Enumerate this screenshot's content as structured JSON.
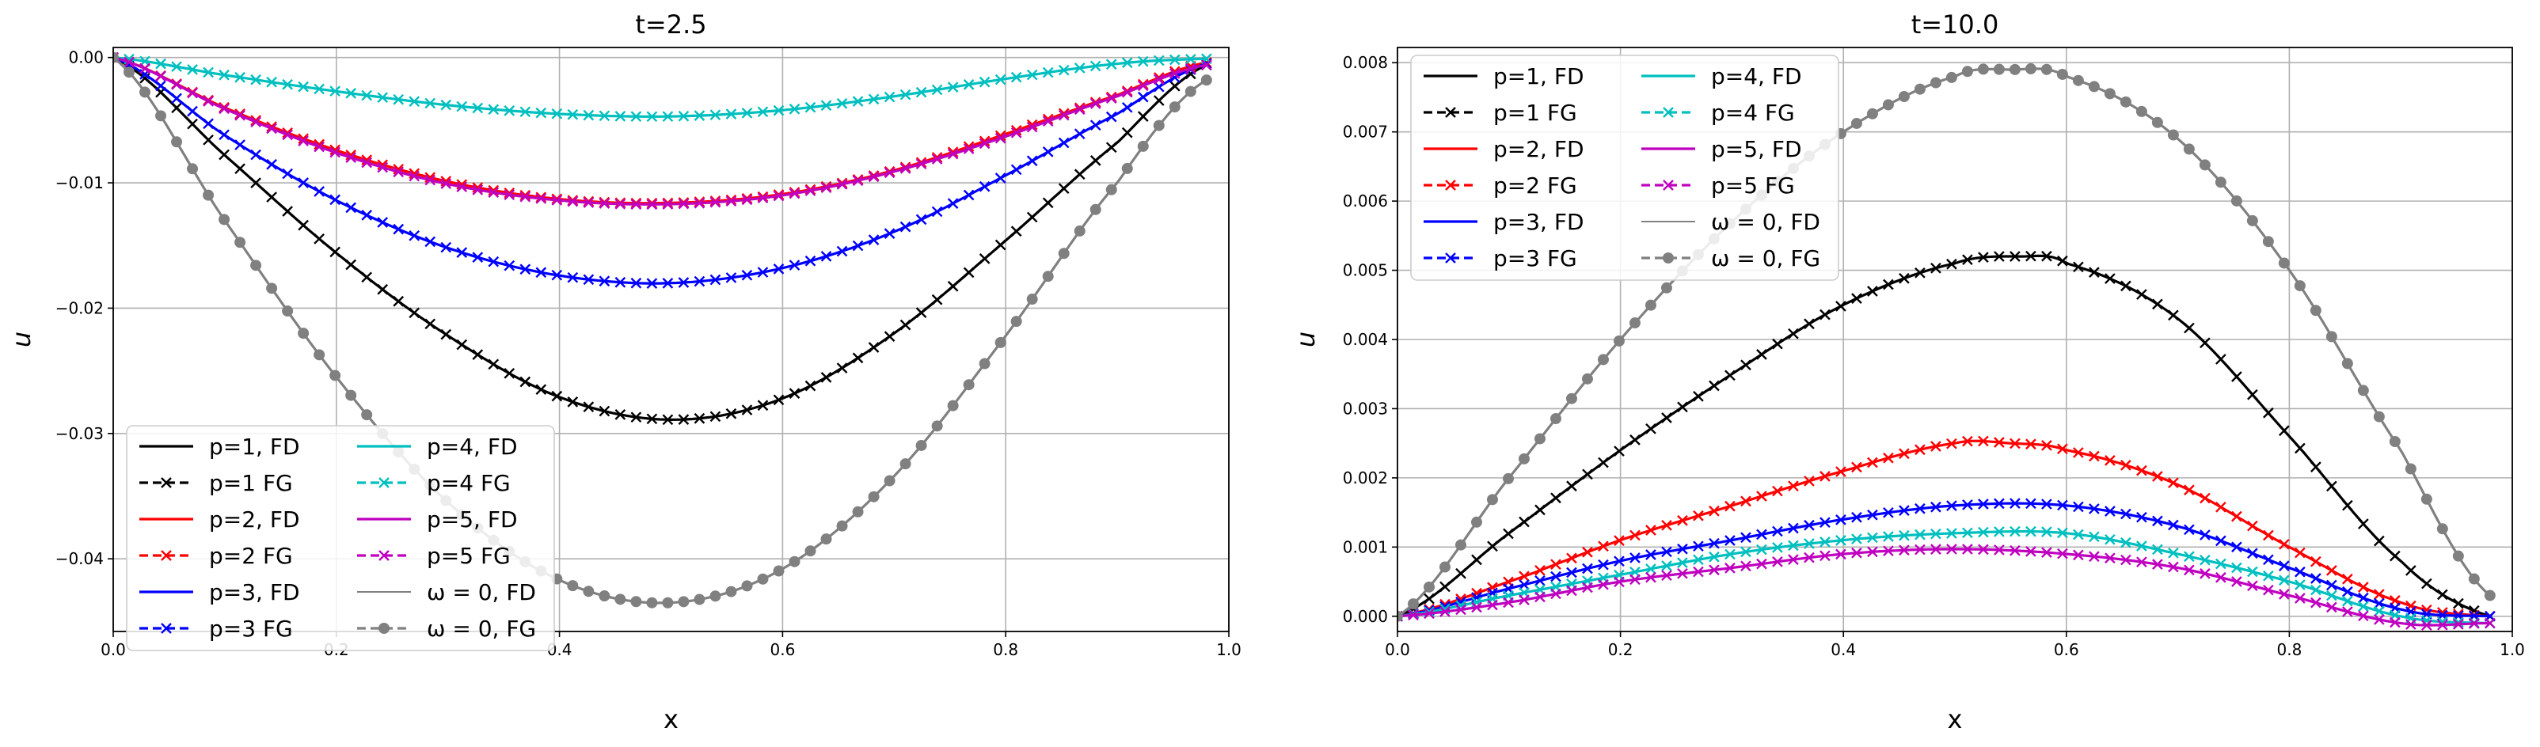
{
  "chart_data": [
    {
      "type": "line",
      "title": "t=2.5",
      "xlabel": "x",
      "ylabel": "u",
      "xlim": [
        0.0,
        1.0
      ],
      "ylim": [
        -0.0458,
        0.0008
      ],
      "xticks": [
        "0.0",
        "0.2",
        "0.4",
        "0.6",
        "0.8",
        "1.0"
      ],
      "yticks": [
        "0.00",
        "−0.01",
        "−0.02",
        "−0.03",
        "−0.04"
      ],
      "grid": true,
      "legend_position": "lower-left",
      "legend": [
        "p=1, FD",
        "p=1 FG",
        "p=2, FD",
        "p=2 FG",
        "p=3, FD",
        "p=3 FG",
        "p=4, FD",
        "p=4 FG",
        "p=5, FD",
        "p=5 FG",
        "ω = 0, FD",
        "ω = 0, FG"
      ],
      "series": [
        {
          "name": "p=1",
          "color": "#000000",
          "points": [
            [
              0,
              0
            ],
            [
              0.1,
              -0.0078
            ],
            [
              0.2,
              -0.0156
            ],
            [
              0.3,
              -0.0222
            ],
            [
              0.4,
              -0.0271
            ],
            [
              0.5,
              -0.0289
            ],
            [
              0.6,
              -0.0272
            ],
            [
              0.7,
              -0.022
            ],
            [
              0.8,
              -0.0146
            ],
            [
              0.9,
              -0.0068
            ],
            [
              0.98,
              -0.0006
            ]
          ]
        },
        {
          "name": "p=2",
          "color": "#ff0000",
          "points": [
            [
              0,
              0
            ],
            [
              0.1,
              -0.004
            ],
            [
              0.2,
              -0.0074
            ],
            [
              0.3,
              -0.0099
            ],
            [
              0.4,
              -0.0113
            ],
            [
              0.5,
              -0.0116
            ],
            [
              0.6,
              -0.0109
            ],
            [
              0.7,
              -0.009
            ],
            [
              0.8,
              -0.0061
            ],
            [
              0.9,
              -0.003
            ],
            [
              0.98,
              -0.0004
            ]
          ]
        },
        {
          "name": "p=3",
          "color": "#0000ff",
          "points": [
            [
              0,
              0
            ],
            [
              0.1,
              -0.0062
            ],
            [
              0.2,
              -0.0114
            ],
            [
              0.3,
              -0.0152
            ],
            [
              0.4,
              -0.0174
            ],
            [
              0.5,
              -0.018
            ],
            [
              0.6,
              -0.0168
            ],
            [
              0.7,
              -0.0139
            ],
            [
              0.8,
              -0.0094
            ],
            [
              0.9,
              -0.0045
            ],
            [
              0.98,
              -0.0005
            ]
          ]
        },
        {
          "name": "p=4",
          "color": "#00bfbf",
          "points": [
            [
              0,
              0
            ],
            [
              0.1,
              -0.0014
            ],
            [
              0.2,
              -0.0027
            ],
            [
              0.3,
              -0.0038
            ],
            [
              0.4,
              -0.0045
            ],
            [
              0.5,
              -0.0047
            ],
            [
              0.6,
              -0.0042
            ],
            [
              0.7,
              -0.0031
            ],
            [
              0.8,
              -0.0017
            ],
            [
              0.9,
              -0.0005
            ],
            [
              0.98,
              -0.0001
            ]
          ]
        },
        {
          "name": "p=5",
          "color": "#bf00bf",
          "points": [
            [
              0,
              0
            ],
            [
              0.1,
              -0.0041
            ],
            [
              0.2,
              -0.0076
            ],
            [
              0.3,
              -0.0101
            ],
            [
              0.4,
              -0.0114
            ],
            [
              0.5,
              -0.0117
            ],
            [
              0.6,
              -0.011
            ],
            [
              0.7,
              -0.0091
            ],
            [
              0.8,
              -0.0063
            ],
            [
              0.9,
              -0.0031
            ],
            [
              0.98,
              -0.0006
            ]
          ]
        },
        {
          "name": "ω = 0",
          "color": "#808080",
          "points": [
            [
              0,
              0
            ],
            [
              0.1,
              -0.013
            ],
            [
              0.2,
              -0.0255
            ],
            [
              0.3,
              -0.0355
            ],
            [
              0.4,
              -0.0417
            ],
            [
              0.5,
              -0.0435
            ],
            [
              0.6,
              -0.0408
            ],
            [
              0.7,
              -0.0334
            ],
            [
              0.8,
              -0.0222
            ],
            [
              0.9,
              -0.01
            ],
            [
              0.98,
              -0.0018
            ]
          ]
        }
      ]
    },
    {
      "type": "line",
      "title": "t=10.0",
      "xlabel": "x",
      "ylabel": "u",
      "xlim": [
        0.0,
        1.0
      ],
      "ylim": [
        -0.00022,
        0.00822
      ],
      "xticks": [
        "0.0",
        "0.2",
        "0.4",
        "0.6",
        "0.8",
        "1.0"
      ],
      "yticks": [
        "0.000",
        "0.001",
        "0.002",
        "0.003",
        "0.004",
        "0.005",
        "0.006",
        "0.007",
        "0.008"
      ],
      "grid": true,
      "legend_position": "upper-left",
      "legend": [
        "p=1, FD",
        "p=1 FG",
        "p=2, FD",
        "p=2 FG",
        "p=3, FD",
        "p=3 FG",
        "p=4, FD",
        "p=4 FG",
        "p=5, FD",
        "p=5 FG",
        "ω = 0, FD",
        "ω = 0, FG"
      ],
      "series": [
        {
          "name": "p=1",
          "color": "#000000",
          "points": [
            [
              0,
              0
            ],
            [
              0.1,
              0.0012
            ],
            [
              0.2,
              0.0024
            ],
            [
              0.3,
              0.0035
            ],
            [
              0.4,
              0.0045
            ],
            [
              0.5,
              0.0051
            ],
            [
              0.56,
              0.0052
            ],
            [
              0.6,
              0.0051
            ],
            [
              0.7,
              0.0043
            ],
            [
              0.8,
              0.0026
            ],
            [
              0.9,
              0.0008
            ],
            [
              0.98,
              0.0
            ]
          ]
        },
        {
          "name": "p=2",
          "color": "#ff0000",
          "points": [
            [
              0,
              0
            ],
            [
              0.1,
              0.0005
            ],
            [
              0.2,
              0.0011
            ],
            [
              0.3,
              0.0016
            ],
            [
              0.4,
              0.0021
            ],
            [
              0.5,
              0.0025
            ],
            [
              0.55,
              0.0025
            ],
            [
              0.6,
              0.0024
            ],
            [
              0.7,
              0.0019
            ],
            [
              0.8,
              0.001
            ],
            [
              0.9,
              0.0002
            ],
            [
              0.98,
              0.0
            ]
          ]
        },
        {
          "name": "p=3",
          "color": "#0000ff",
          "points": [
            [
              0,
              0
            ],
            [
              0.1,
              0.0004
            ],
            [
              0.2,
              0.0008
            ],
            [
              0.3,
              0.0011
            ],
            [
              0.4,
              0.0014
            ],
            [
              0.5,
              0.0016
            ],
            [
              0.6,
              0.0016
            ],
            [
              0.7,
              0.0013
            ],
            [
              0.8,
              0.0007
            ],
            [
              0.9,
              0.0001
            ],
            [
              0.98,
              0.0
            ]
          ]
        },
        {
          "name": "p=4",
          "color": "#00bfbf",
          "points": [
            [
              0,
              0
            ],
            [
              0.1,
              0.0003
            ],
            [
              0.2,
              0.0006
            ],
            [
              0.3,
              0.0009
            ],
            [
              0.4,
              0.0011
            ],
            [
              0.5,
              0.0012
            ],
            [
              0.6,
              0.0012
            ],
            [
              0.7,
              0.0009
            ],
            [
              0.8,
              0.0005
            ],
            [
              0.9,
              0.0
            ],
            [
              0.98,
              -0.0001
            ]
          ]
        },
        {
          "name": "p=5",
          "color": "#bf00bf",
          "points": [
            [
              0,
              0
            ],
            [
              0.1,
              0.0002
            ],
            [
              0.2,
              0.0005
            ],
            [
              0.3,
              0.0007
            ],
            [
              0.4,
              0.0009
            ],
            [
              0.5,
              0.00097
            ],
            [
              0.6,
              0.0009
            ],
            [
              0.7,
              0.0007
            ],
            [
              0.8,
              0.0003
            ],
            [
              0.9,
              -0.0001
            ],
            [
              0.98,
              -0.0001
            ]
          ]
        },
        {
          "name": "ω = 0",
          "color": "#808080",
          "points": [
            [
              0,
              0
            ],
            [
              0.1,
              0.002
            ],
            [
              0.2,
              0.004
            ],
            [
              0.3,
              0.0057
            ],
            [
              0.4,
              0.007
            ],
            [
              0.5,
              0.0078
            ],
            [
              0.55,
              0.0079
            ],
            [
              0.6,
              0.0078
            ],
            [
              0.7,
              0.0069
            ],
            [
              0.8,
              0.005
            ],
            [
              0.9,
              0.0024
            ],
            [
              0.98,
              0.0003
            ]
          ]
        }
      ]
    }
  ]
}
